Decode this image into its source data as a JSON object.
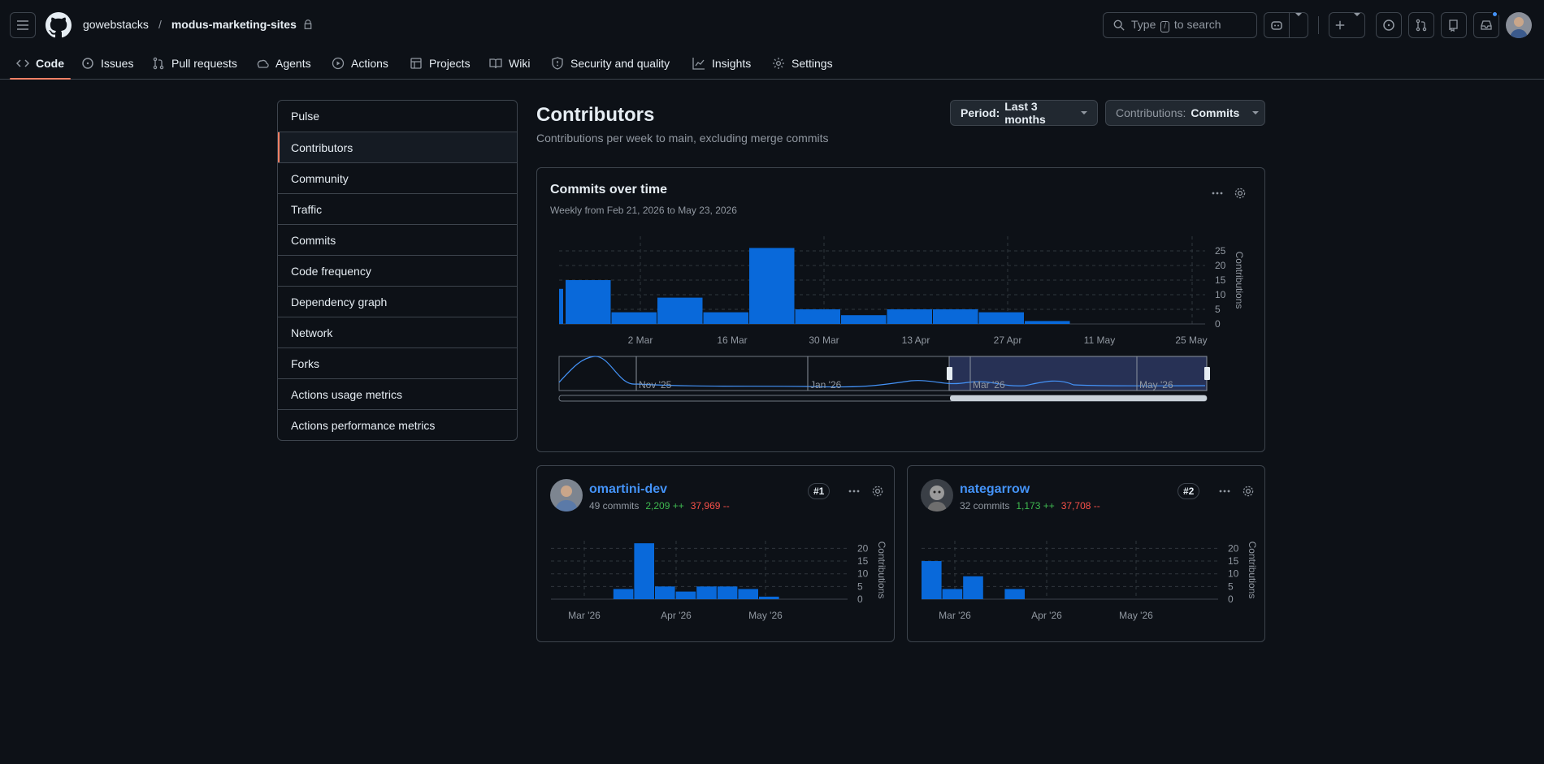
{
  "header": {
    "owner": "gowebstacks",
    "separator": "/",
    "repo": "modus-marketing-sites",
    "search": {
      "pre": "Type",
      "key": "/",
      "post": "to search"
    }
  },
  "tabs": [
    {
      "label": "Code",
      "icon": "code-icon"
    },
    {
      "label": "Issues",
      "icon": "issue-icon"
    },
    {
      "label": "Pull requests",
      "icon": "pull-request-icon"
    },
    {
      "label": "Agents",
      "icon": "agent-icon"
    },
    {
      "label": "Actions",
      "icon": "play-icon"
    },
    {
      "label": "Projects",
      "icon": "table-icon"
    },
    {
      "label": "Wiki",
      "icon": "book-icon"
    },
    {
      "label": "Security and quality",
      "icon": "shield-icon"
    },
    {
      "label": "Insights",
      "icon": "graph-icon"
    },
    {
      "label": "Settings",
      "icon": "gear-icon"
    }
  ],
  "sidebar": {
    "items": [
      {
        "label": "Pulse"
      },
      {
        "label": "Contributors"
      },
      {
        "label": "Community"
      },
      {
        "label": "Traffic"
      },
      {
        "label": "Commits"
      },
      {
        "label": "Code frequency"
      },
      {
        "label": "Dependency graph"
      },
      {
        "label": "Network"
      },
      {
        "label": "Forks"
      },
      {
        "label": "Actions usage metrics"
      },
      {
        "label": "Actions performance metrics"
      }
    ],
    "selected": "Contributors"
  },
  "main": {
    "title": "Contributors",
    "subtitle": "Contributions per week to main, excluding merge commits",
    "period": {
      "label": "Period:",
      "value": "Last 3 months"
    },
    "contributions": {
      "label": "Contributions:",
      "value": "Commits"
    }
  },
  "commits_card": {
    "title": "Commits over time",
    "subtitle": "Weekly from Feb 21, 2026 to May 23, 2026",
    "navigator_labels": [
      "Nov '25",
      "Jan '26",
      "Mar '26",
      "May '26"
    ]
  },
  "contributors": [
    {
      "name": "omartini-dev",
      "commits": "49 commits",
      "additions": "2,209 ++",
      "deletions": "37,969 --",
      "rank": "#1"
    },
    {
      "name": "nategarrow",
      "commits": "32 commits",
      "additions": "1,173 ++",
      "deletions": "37,708 --",
      "rank": "#2"
    }
  ],
  "colors": {
    "accent": "#f78166",
    "bar": "#0969da",
    "link": "#4493f8"
  },
  "chart_data": [
    {
      "type": "bar",
      "name_ref": "commits-over-time",
      "x": [
        "2026-02-21",
        "2026-02-23",
        "2026-03-02",
        "2026-03-09",
        "2026-03-16",
        "2026-03-23",
        "2026-03-30",
        "2026-04-06",
        "2026-04-13",
        "2026-04-20",
        "2026-04-27",
        "2026-05-04",
        "2026-05-11",
        "2026-05-18"
      ],
      "values": [
        12,
        15,
        4,
        9,
        4,
        26,
        5,
        3,
        5,
        5,
        4,
        1,
        0,
        0
      ],
      "xticks": [
        "2 Mar",
        "16 Mar",
        "30 Mar",
        "13 Apr",
        "27 Apr",
        "11 May",
        "25 May"
      ],
      "yticks": [
        0,
        5,
        10,
        15,
        20,
        25
      ],
      "ylabel": "Contributions",
      "ylim": [
        0,
        30
      ],
      "grid": true
    },
    {
      "type": "bar",
      "name_ref": "omartini-dev",
      "values": [
        0,
        0,
        0,
        4,
        22,
        5,
        3,
        5,
        5,
        4,
        1,
        0,
        0
      ],
      "xticks": [
        "Mar '26",
        "Apr '26",
        "May '26"
      ],
      "yticks": [
        0,
        5,
        10,
        15,
        20
      ],
      "ylabel": "Contributions",
      "ylim": [
        0,
        23
      ]
    },
    {
      "type": "bar",
      "name_ref": "nategarrow",
      "values": [
        15,
        4,
        9,
        0,
        4,
        0,
        0,
        0,
        0,
        0,
        0,
        0,
        0
      ],
      "xticks": [
        "Mar '26",
        "Apr '26",
        "May '26"
      ],
      "yticks": [
        0,
        5,
        10,
        15,
        20
      ],
      "ylabel": "Contributions",
      "ylim": [
        0,
        23
      ]
    }
  ]
}
